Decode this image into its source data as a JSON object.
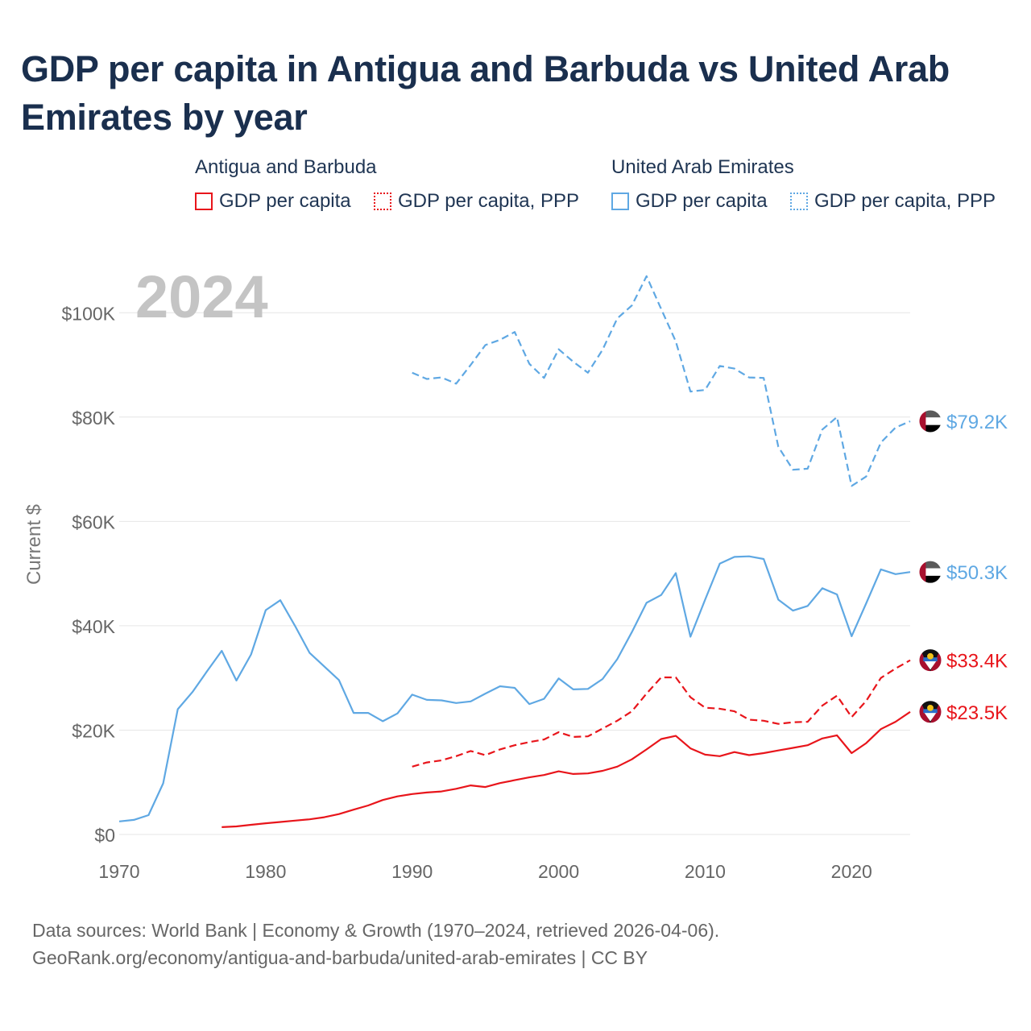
{
  "chart_data": {
    "type": "line",
    "title": "GDP per capita in Antigua and Barbuda vs United Arab Emirates by year",
    "year_label": "2024",
    "ylabel": "Current $",
    "xlabel": "",
    "xlim": [
      1970,
      2024
    ],
    "ylim": [
      0,
      110000
    ],
    "x_ticks": [
      1970,
      1980,
      1990,
      2000,
      2010,
      2020
    ],
    "y_ticks": [
      {
        "value": 0,
        "label": "$0"
      },
      {
        "value": 20000,
        "label": "$20K"
      },
      {
        "value": 40000,
        "label": "$40K"
      },
      {
        "value": 60000,
        "label": "$60K"
      },
      {
        "value": 80000,
        "label": "$80K"
      },
      {
        "value": 100000,
        "label": "$100K"
      }
    ],
    "legend": {
      "groups": [
        {
          "title": "Antigua and Barbuda",
          "items": [
            "GDP per capita",
            "GDP per capita, PPP"
          ]
        },
        {
          "title": "United Arab Emirates",
          "items": [
            "GDP per capita",
            "GDP per capita, PPP"
          ]
        }
      ]
    },
    "series": [
      {
        "name": "United Arab Emirates GDP per capita, PPP",
        "color": "#5fa8e3",
        "dash": "dashed",
        "flag": "uae",
        "end_label": "$79.2K",
        "x": [
          1990,
          1991,
          1992,
          1993,
          1994,
          1995,
          1996,
          1997,
          1998,
          1999,
          2000,
          2001,
          2002,
          2003,
          2004,
          2005,
          2006,
          2007,
          2008,
          2009,
          2010,
          2011,
          2012,
          2013,
          2014,
          2015,
          2016,
          2017,
          2018,
          2019,
          2020,
          2021,
          2022,
          2023,
          2024
        ],
        "values": [
          88500,
          87300,
          87600,
          86400,
          90000,
          93800,
          94800,
          96300,
          90200,
          87500,
          93000,
          90600,
          88500,
          92900,
          98900,
          101400,
          107000,
          100700,
          94500,
          84900,
          85200,
          89800,
          89300,
          87600,
          87500,
          74300,
          69900,
          70100,
          77600,
          80000,
          66800,
          68600,
          75100,
          78000,
          79200
        ]
      },
      {
        "name": "United Arab Emirates GDP per capita",
        "color": "#5fa8e3",
        "dash": "solid",
        "flag": "uae",
        "end_label": "$50.3K",
        "x": [
          1970,
          1971,
          1972,
          1973,
          1974,
          1975,
          1976,
          1977,
          1978,
          1979,
          1980,
          1981,
          1982,
          1983,
          1984,
          1985,
          1986,
          1987,
          1988,
          1989,
          1990,
          1991,
          1992,
          1993,
          1994,
          1995,
          1996,
          1997,
          1998,
          1999,
          2000,
          2001,
          2002,
          2003,
          2004,
          2005,
          2006,
          2007,
          2008,
          2009,
          2010,
          2011,
          2012,
          2013,
          2014,
          2015,
          2016,
          2017,
          2018,
          2019,
          2020,
          2021,
          2022,
          2023,
          2024
        ],
        "values": [
          2500,
          2800,
          3700,
          9800,
          24000,
          27300,
          31300,
          35200,
          29500,
          34500,
          43000,
          44900,
          40000,
          34800,
          32200,
          29600,
          23300,
          23300,
          21700,
          23200,
          26800,
          25800,
          25700,
          25200,
          25500,
          27000,
          28400,
          28100,
          25000,
          26000,
          29900,
          27800,
          27900,
          29800,
          33600,
          38800,
          44400,
          45900,
          50100,
          37900,
          45000,
          51900,
          53200,
          53300,
          52800,
          45000,
          42900,
          43800,
          47200,
          46000,
          38000,
          44300,
          50800,
          49900,
          50300
        ]
      },
      {
        "name": "Antigua and Barbuda GDP per capita, PPP",
        "color": "#e8151b",
        "dash": "dashed",
        "flag": "atg",
        "end_label": "$33.4K",
        "x": [
          1990,
          1991,
          1992,
          1993,
          1994,
          1995,
          1996,
          1997,
          1998,
          1999,
          2000,
          2001,
          2002,
          2003,
          2004,
          2005,
          2006,
          2007,
          2008,
          2009,
          2010,
          2011,
          2012,
          2013,
          2014,
          2015,
          2016,
          2017,
          2018,
          2019,
          2020,
          2021,
          2022,
          2023,
          2024
        ],
        "values": [
          13000,
          13800,
          14200,
          15000,
          16000,
          15200,
          16300,
          17100,
          17700,
          18200,
          19600,
          18700,
          18800,
          20300,
          21800,
          23600,
          27000,
          30100,
          30100,
          26300,
          24300,
          24100,
          23600,
          22000,
          21800,
          21200,
          21500,
          21600,
          24700,
          26600,
          22500,
          25600,
          30000,
          31800,
          33400
        ]
      },
      {
        "name": "Antigua and Barbuda GDP per capita",
        "color": "#e8151b",
        "dash": "solid",
        "flag": "atg",
        "end_label": "$23.5K",
        "x": [
          1977,
          1978,
          1979,
          1980,
          1981,
          1982,
          1983,
          1984,
          1985,
          1986,
          1987,
          1988,
          1989,
          1990,
          1991,
          1992,
          1993,
          1994,
          1995,
          1996,
          1997,
          1998,
          1999,
          2000,
          2001,
          2002,
          2003,
          2004,
          2005,
          2006,
          2007,
          2008,
          2009,
          2010,
          2011,
          2012,
          2013,
          2014,
          2015,
          2016,
          2017,
          2018,
          2019,
          2020,
          2021,
          2022,
          2023,
          2024
        ],
        "values": [
          1400,
          1550,
          1850,
          2150,
          2400,
          2650,
          2900,
          3300,
          3900,
          4750,
          5550,
          6600,
          7300,
          7750,
          8050,
          8250,
          8750,
          9400,
          9100,
          9850,
          10400,
          10950,
          11400,
          12100,
          11600,
          11700,
          12200,
          13000,
          14400,
          16300,
          18300,
          18900,
          16500,
          15300,
          15000,
          15800,
          15200,
          15600,
          16100,
          16600,
          17100,
          18400,
          19000,
          15600,
          17500,
          20200,
          21600,
          23500
        ]
      }
    ]
  },
  "footer": {
    "line1": "Data sources: World Bank | Economy & Growth (1970–2024, retrieved 2026-04-06).",
    "line2": "GeoRank.org/economy/antigua-and-barbuda/united-arab-emirates | CC BY"
  }
}
